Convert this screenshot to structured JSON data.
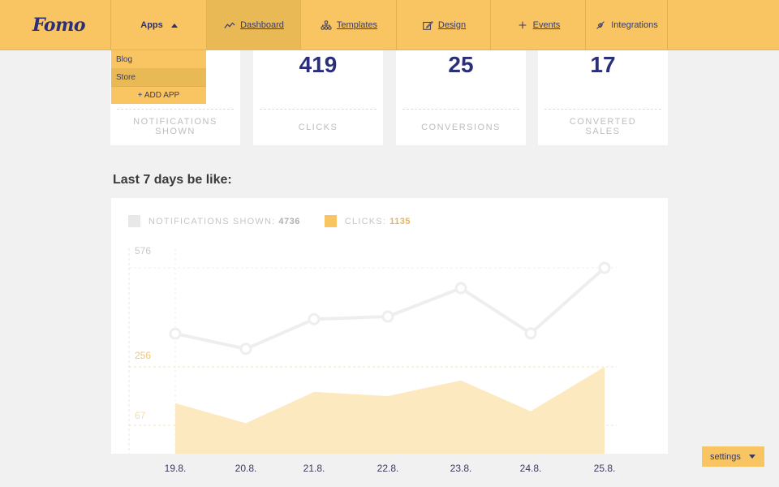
{
  "brand": {
    "logo": "Fomo"
  },
  "nav": {
    "apps": "Apps",
    "dashboard": "Dashboard",
    "templates": "Templates",
    "design": "Design",
    "events": "Events",
    "integrations": "Integrations"
  },
  "apps_menu": {
    "items": [
      "Blog",
      "Store"
    ],
    "selected": "Store",
    "add_app": "+ ADD APP"
  },
  "stats": {
    "notifications_shown": {
      "label": "NOTIFICATIONS SHOWN",
      "label_line1": "NOTIFICATIONS",
      "label_line2": "SHOWN"
    },
    "clicks": {
      "value": "419",
      "label": "CLICKS"
    },
    "conversions": {
      "value": "25",
      "label": "CONVERSIONS"
    },
    "converted_sales": {
      "value": "17",
      "label_line1": "CONVERTED",
      "label_line2": "SALES"
    }
  },
  "section_title": "Last 7 days be like:",
  "legend": {
    "notifications": {
      "label": "NOTIFICATIONS SHOWN:",
      "value": "4736",
      "color": "#e8e8e8"
    },
    "clicks": {
      "label": "CLICKS:",
      "value": "1135",
      "color": "#f9c562"
    }
  },
  "chart_data": {
    "type": "line",
    "x": [
      "19.8.",
      "20.8.",
      "21.8.",
      "22.8.",
      "23.8.",
      "24.8.",
      "25.8."
    ],
    "series": [
      {
        "name": "NOTIFICATIONS SHOWN",
        "values": [
          372,
          325,
          417,
          425,
          513,
          373,
          576
        ],
        "color": "#eeeeee"
      },
      {
        "name": "CLICKS",
        "values": [
          149,
          90,
          182,
          170,
          216,
          125,
          256
        ],
        "color": "#fde9bf"
      }
    ],
    "y_ticks_notifications": [
      "576"
    ],
    "y_ticks_clicks": [
      "256",
      "67"
    ]
  },
  "settings": {
    "label": "settings"
  }
}
